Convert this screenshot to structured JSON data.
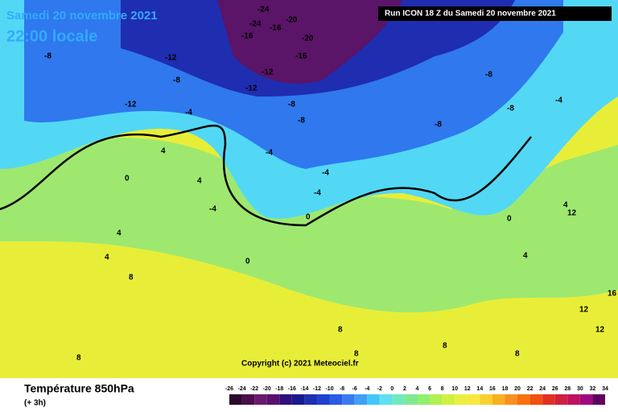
{
  "header": {
    "date": "Samedi 20 novembre 2021",
    "time": "22:00 locale",
    "run": "Run ICON 18 Z du Samedi 20 novembre 2021"
  },
  "copyright": "Copyright (c) 2021 Meteociel.fr",
  "footer": {
    "title": "Température 850hPa",
    "step": "(+ 3h)"
  },
  "map_labels": [
    -24,
    -24,
    -20,
    -20,
    -16,
    -16,
    -16,
    -12,
    -12,
    -12,
    -12,
    -8,
    -8,
    -8,
    -8,
    -8,
    -8,
    -8,
    -4,
    -4,
    -4,
    -4,
    -4,
    -4,
    0,
    0,
    0,
    0,
    4,
    4,
    4,
    4,
    4,
    4,
    8,
    8,
    8,
    8,
    8,
    8,
    12,
    12,
    12,
    16
  ],
  "legend": {
    "labels": [
      -26,
      -24,
      -22,
      -20,
      -18,
      -16,
      -14,
      -12,
      -10,
      -8,
      -6,
      -4,
      -2,
      0,
      2,
      4,
      6,
      8,
      10,
      12,
      14,
      16,
      18,
      20,
      22,
      24,
      26,
      28,
      30,
      32,
      34
    ],
    "colors": [
      "#2a0a2a",
      "#4a0f4a",
      "#6a1a6a",
      "#5a1070",
      "#30107a",
      "#1a1a90",
      "#1f2fb0",
      "#2040d0",
      "#2a5ae8",
      "#3a7af0",
      "#3fa0f5",
      "#40c8f8",
      "#60e0f0",
      "#70e8c0",
      "#80e890",
      "#90f070",
      "#b0f050",
      "#d0f040",
      "#e8f040",
      "#f8e840",
      "#f8d030",
      "#f8b020",
      "#f89020",
      "#f87010",
      "#f05010",
      "#e03020",
      "#d02040",
      "#c01060",
      "#a00880",
      "#600060"
    ]
  }
}
